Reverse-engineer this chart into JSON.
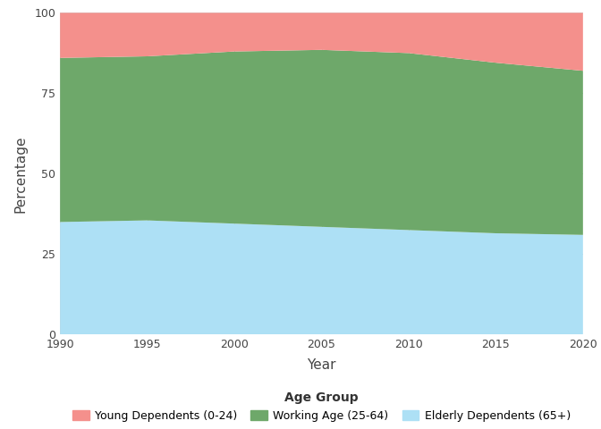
{
  "years": [
    1990,
    1995,
    2000,
    2005,
    2010,
    2015,
    2020
  ],
  "elderly_dependents": [
    35.0,
    35.5,
    34.5,
    33.5,
    32.5,
    31.5,
    31.0
  ],
  "working_age": [
    51.0,
    51.0,
    53.5,
    55.0,
    55.0,
    53.0,
    51.0
  ],
  "young_dependents": [
    14.0,
    13.5,
    12.0,
    11.5,
    12.5,
    15.5,
    18.0
  ],
  "colors": {
    "elderly": "#ADE0F5",
    "working": "#6EA86A",
    "young": "#F4908C"
  },
  "xlabel": "Year",
  "ylabel": "Percentage",
  "ylim": [
    0,
    100
  ],
  "xlim": [
    1990,
    2020
  ],
  "xticks": [
    1990,
    1995,
    2000,
    2005,
    2010,
    2015,
    2020
  ],
  "yticks": [
    0,
    25,
    50,
    75,
    100
  ],
  "legend_title": "Age Group",
  "legend_labels": [
    "Young Dependents (0-24)",
    "Working Age (25-64)",
    "Elderly Dependents (65+)"
  ],
  "background_color": "#FFFFFF",
  "grid_color": "#CCCCCC",
  "figsize": [
    6.72,
    4.8
  ],
  "dpi": 100
}
